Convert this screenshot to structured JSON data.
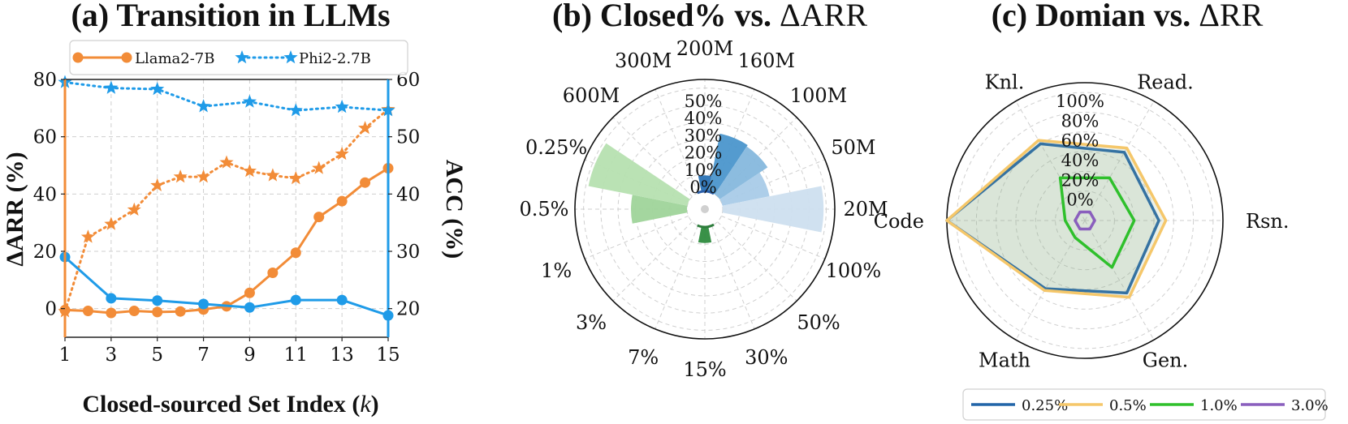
{
  "chart_data": [
    {
      "type": "line",
      "title": "(a) Transition in LLMs",
      "xlabel": "Closed-sourced Set Index (k)",
      "xlabel_main": "Closed-sourced Set Index (",
      "xlabel_var": "k",
      "xlabel_close": ")",
      "ylabel_left": "ΔARR (%)",
      "ylabel_right": "ACC (%)",
      "xlim": [
        1,
        15
      ],
      "x_ticks": [
        1,
        3,
        5,
        7,
        9,
        11,
        13,
        15
      ],
      "ylim_left": [
        -10,
        80
      ],
      "y_ticks_left": [
        0,
        20,
        40,
        60,
        80
      ],
      "ylim_right": [
        15,
        60
      ],
      "y_ticks_right": [
        20,
        30,
        40,
        50,
        60
      ],
      "grid": true,
      "legend_position": "top",
      "colors": {
        "llama": "#f28c38",
        "phi": "#1f9be8"
      },
      "series": [
        {
          "name": "Llama2-7B",
          "key": "llama",
          "axis": "left",
          "marker": "circle",
          "style": "solid",
          "x": [
            1,
            2,
            3,
            4,
            5,
            6,
            7,
            8,
            9,
            10,
            11,
            12,
            13,
            14,
            15
          ],
          "values": [
            -0.5,
            -0.8,
            -1.5,
            -0.8,
            -1.2,
            -1.0,
            -0.3,
            0.8,
            5.5,
            12.5,
            19.5,
            32,
            37.5,
            44,
            49
          ]
        },
        {
          "name": "Llama2-7B",
          "key": "llama",
          "axis": "left",
          "marker": "star",
          "style": "dotted",
          "x": [
            1,
            2,
            3,
            4,
            5,
            6,
            7,
            8,
            9,
            10,
            11,
            12,
            13,
            14,
            15
          ],
          "values": [
            -1,
            25,
            29.5,
            34.5,
            43,
            46,
            46,
            51,
            48,
            46.5,
            45.5,
            49,
            54,
            63,
            69.5
          ]
        },
        {
          "name": "Phi2-2.7B",
          "key": "phi",
          "axis": "right",
          "marker": "circle",
          "style": "solid",
          "x": [
            1,
            3,
            5,
            7,
            9,
            11,
            13,
            15
          ],
          "values": [
            29,
            21.8,
            21.4,
            20.8,
            20.2,
            21.5,
            21.5,
            18.8
          ]
        },
        {
          "name": "Phi2-2.7B",
          "key": "phi",
          "axis": "right",
          "marker": "star",
          "style": "dotted",
          "x": [
            1,
            3,
            5,
            7,
            9,
            11,
            13,
            15
          ],
          "values": [
            59.5,
            58.5,
            58.3,
            55.3,
            56.1,
            54.6,
            55.2,
            54.6
          ]
        }
      ],
      "legend": [
        {
          "label": "Llama2-7B",
          "key": "llama",
          "marker": "circle",
          "style": "solid"
        },
        {
          "label": "Phi2-2.7B",
          "key": "phi",
          "marker": "star",
          "style": "dotted"
        }
      ]
    },
    {
      "type": "bar",
      "title": "(b) Closed% vs. ΔARR",
      "title_text": "(b) Closed% vs. ",
      "title_delta": "ΔARR",
      "polar": true,
      "radial_max": 70,
      "radial_ticks": [
        "0%",
        "10%",
        "20%",
        "30%",
        "40%",
        "50%"
      ],
      "grid": true,
      "categories": [
        "200M",
        "160M",
        "100M",
        "50M",
        "20M",
        "100%",
        "50%",
        "30%",
        "15%",
        "7%",
        "3%",
        "1%",
        "0.5%",
        "0.25%",
        "600M",
        "300M"
      ],
      "values": [
        10,
        37,
        36,
        30,
        63,
        0,
        0,
        0,
        10,
        0,
        0,
        0,
        35,
        63,
        0,
        0
      ],
      "colors": [
        "#2a72b5",
        "#4b96cc",
        "#86b8dd",
        "#a9cbe8",
        "#cddfef",
        "#4a8f48",
        "#4a8f48",
        "#4a8f48",
        "#2e8b3e",
        "#4a8f48",
        "#4a8f48",
        "#4a8f48",
        "#9fd49a",
        "#b6e0b0",
        "#cde9c6",
        "#2a72b5"
      ],
      "accent_arcs": {
        "top": "#2a5ea8",
        "bottom": "#2e7d3c"
      }
    },
    {
      "type": "radar",
      "title": "(c) Domian vs. ΔRR",
      "title_text": "(c) Domian vs. ",
      "title_delta": "ΔRR",
      "axes": [
        "Read.",
        "Rsn.",
        "Gen.",
        "Math",
        "Code",
        "Knl."
      ],
      "radial_min": -30,
      "radial_max": 110,
      "radial_ticks": [
        "0%",
        "20%",
        "40%",
        "60%",
        "80%",
        "100%"
      ],
      "radial_tick_values": [
        0,
        20,
        40,
        60,
        80,
        100
      ],
      "grid": true,
      "legend_position": "bottom",
      "series": [
        {
          "name": "0.25%",
          "color": "#2265a8",
          "fill": true,
          "values": [
            50,
            45,
            55,
            50,
            110,
            60
          ]
        },
        {
          "name": "0.5%",
          "color": "#f5c76a",
          "fill": true,
          "values": [
            55,
            52,
            60,
            52,
            110,
            64
          ]
        },
        {
          "name": "1.0%",
          "color": "#2fc02c",
          "fill": false,
          "values": [
            20,
            20,
            25,
            -10,
            -10,
            20
          ]
        },
        {
          "name": "3.0%",
          "color": "#8a5fbd",
          "fill": false,
          "values": [
            -20,
            -20,
            -20,
            -20,
            -20,
            -20
          ]
        }
      ]
    }
  ]
}
